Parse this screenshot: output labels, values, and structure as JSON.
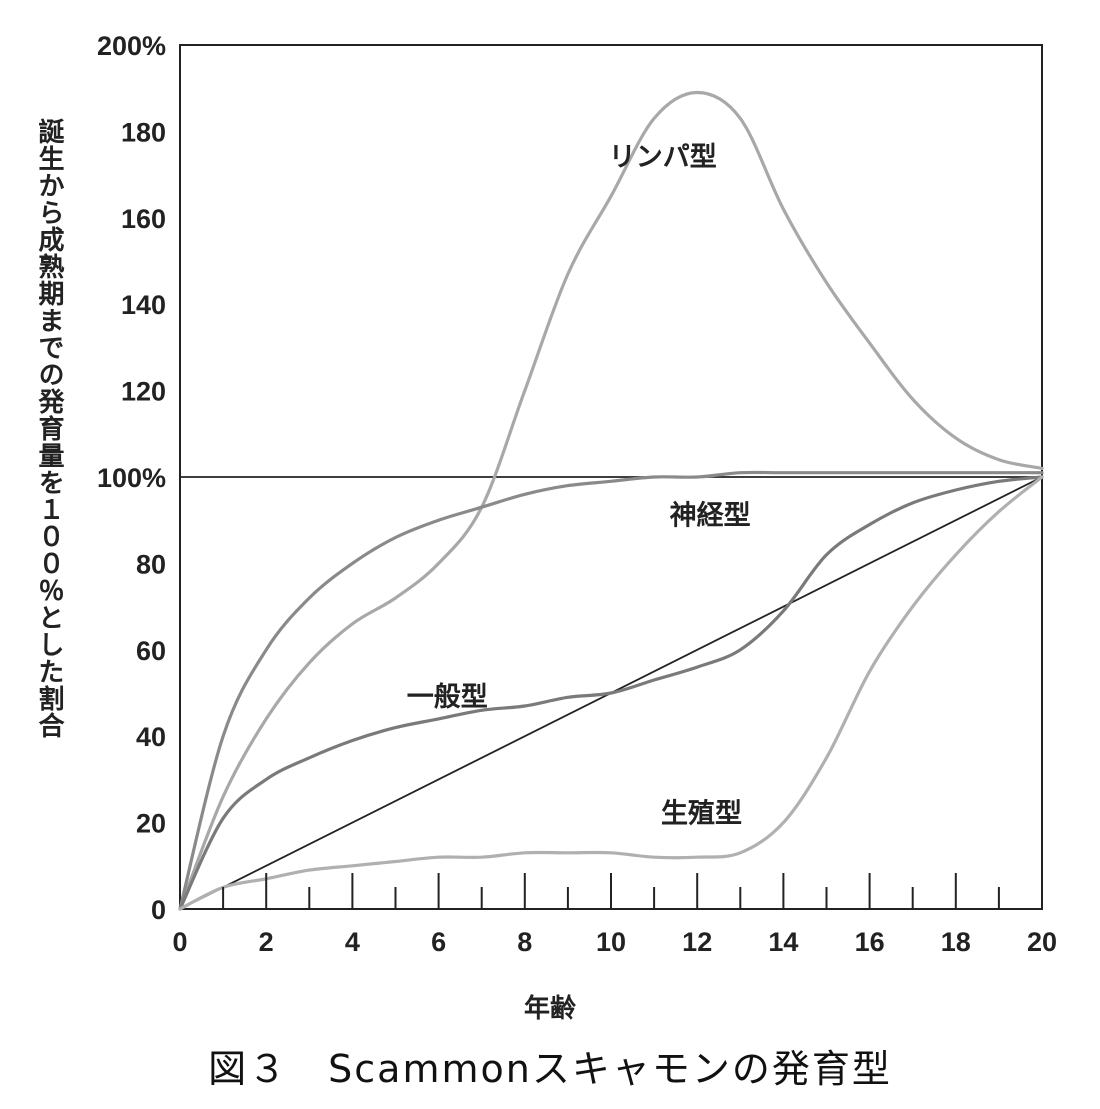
{
  "chart_data": {
    "type": "line",
    "caption": "図３　Scammonスキャモンの発育型",
    "xlabel": "年齢",
    "ylabel": "誕生から成熟期までの発育量を１００％とした割合",
    "xlim": [
      0,
      20
    ],
    "ylim": [
      0,
      200
    ],
    "x_tick_labels": [
      "0",
      "2",
      "4",
      "6",
      "8",
      "10",
      "12",
      "14",
      "16",
      "18",
      "20"
    ],
    "y_tick_labels": [
      "0",
      "20",
      "40",
      "60",
      "80",
      "100%",
      "120",
      "140",
      "160",
      "180",
      "200%"
    ],
    "grid": false,
    "colors": {
      "axis": "#222222",
      "lymph": "#a8a8a8",
      "neural": "#8a8a8a",
      "general": "#7a7a7a",
      "genital": "#b0b0b0"
    },
    "series": [
      {
        "name": "リンパ型",
        "label_at": [
          11.2,
          172
        ],
        "x": [
          0,
          1,
          2,
          3,
          4,
          5,
          6,
          7,
          8,
          9,
          10,
          11,
          12,
          13,
          14,
          15,
          16,
          17,
          18,
          19,
          20
        ],
        "y": [
          0,
          26,
          44,
          57,
          66,
          72,
          80,
          93,
          120,
          147,
          165,
          183,
          189,
          183,
          162,
          145,
          131,
          118,
          109,
          104,
          102
        ]
      },
      {
        "name": "神経型",
        "label_at": [
          12.3,
          89
        ],
        "x": [
          0,
          1,
          2,
          3,
          4,
          5,
          6,
          7,
          8,
          9,
          10,
          11,
          12,
          13,
          14,
          15,
          16,
          17,
          18,
          19,
          20
        ],
        "y": [
          0,
          40,
          60,
          72,
          80,
          86,
          90,
          93,
          96,
          98,
          99,
          100,
          100,
          101,
          101,
          101,
          101,
          101,
          101,
          101,
          101
        ]
      },
      {
        "name": "一般型",
        "label_at": [
          6.2,
          47
        ],
        "x": [
          0,
          1,
          2,
          3,
          4,
          5,
          6,
          7,
          8,
          9,
          10,
          11,
          12,
          13,
          14,
          15,
          16,
          17,
          18,
          19,
          20
        ],
        "y": [
          0,
          21,
          30,
          35,
          39,
          42,
          44,
          46,
          47,
          49,
          50,
          53,
          56,
          60,
          69,
          82,
          89,
          94,
          97,
          99,
          100
        ]
      },
      {
        "name": "生殖型",
        "label_at": [
          12.1,
          20
        ],
        "x": [
          0,
          1,
          2,
          3,
          4,
          5,
          6,
          7,
          8,
          9,
          10,
          11,
          12,
          13,
          14,
          15,
          16,
          17,
          18,
          19,
          20
        ],
        "y": [
          0,
          5,
          7,
          9,
          10,
          11,
          12,
          12,
          13,
          13,
          13,
          12,
          12,
          13,
          20,
          35,
          55,
          70,
          82,
          92,
          100
        ]
      }
    ]
  }
}
